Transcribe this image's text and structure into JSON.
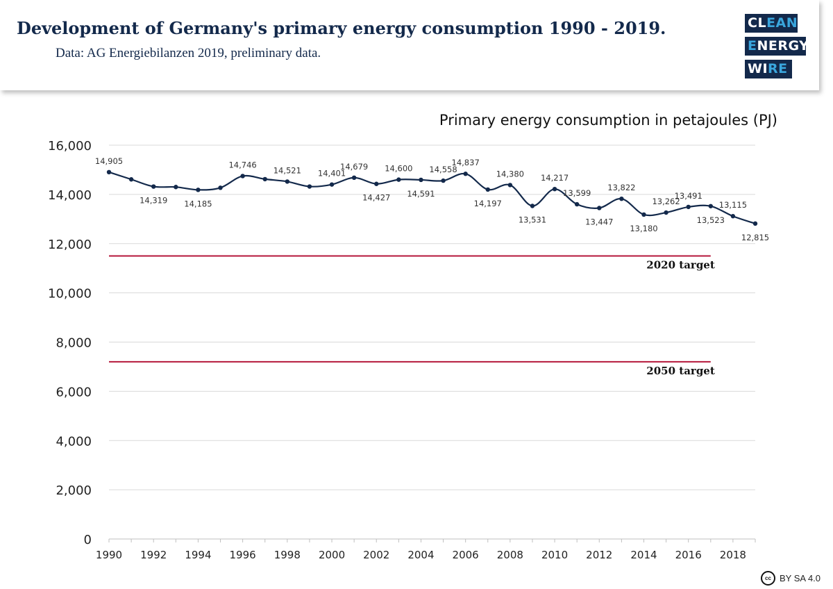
{
  "header": {
    "title": "Development of Germany's primary energy consumption 1990 - 2019.",
    "subtitle": "Data: AG Energiebilanzen 2019, preliminary data."
  },
  "logo": {
    "line1": "CL",
    "line1_accent": "EAN",
    "line2_accent": "E",
    "line2": "NERGY",
    "line3": "WI",
    "line3_accent": "RE",
    "color": "#13294b",
    "accent_color": "#3aa6dd"
  },
  "license": {
    "icon": "cc-icon",
    "icon_text": "cc",
    "text": "BY SA 4.0"
  },
  "chart_data": {
    "type": "line",
    "title": "Primary energy consumption in petajoules (PJ)",
    "xlabel": "",
    "ylabel": "",
    "xlim": [
      1990,
      2019
    ],
    "ylim": [
      0,
      16000
    ],
    "yticks": [
      0,
      2000,
      4000,
      6000,
      8000,
      10000,
      12000,
      14000,
      16000
    ],
    "ytick_labels": [
      "0",
      "2,000",
      "4,000",
      "6,000",
      "8,000",
      "10,000",
      "12,000",
      "14,000",
      "16,000"
    ],
    "xticks": [
      1990,
      1992,
      1994,
      1996,
      1998,
      2000,
      2002,
      2004,
      2006,
      2008,
      2010,
      2012,
      2014,
      2016,
      2018
    ],
    "grid": "horizontal",
    "series": [
      {
        "color": "#13294b",
        "x": [
          1990,
          1991,
          1992,
          1993,
          1994,
          1995,
          1996,
          1997,
          1998,
          1999,
          2000,
          2001,
          2002,
          2003,
          2004,
          2005,
          2006,
          2007,
          2008,
          2009,
          2010,
          2011,
          2012,
          2013,
          2014,
          2015,
          2016,
          2017,
          2018,
          2019
        ],
        "values": [
          14905,
          14610,
          14319,
          14300,
          14185,
          14270,
          14746,
          14620,
          14521,
          14320,
          14401,
          14679,
          14427,
          14600,
          14591,
          14558,
          14837,
          14197,
          14380,
          13531,
          14217,
          13599,
          13447,
          13822,
          13180,
          13262,
          13491,
          13523,
          13115,
          12815
        ],
        "labels": [
          {
            "x": 1990,
            "text": "14,905",
            "pos": "above"
          },
          {
            "x": 1992,
            "text": "14,319",
            "pos": "below"
          },
          {
            "x": 1994,
            "text": "14,185",
            "pos": "below"
          },
          {
            "x": 1996,
            "text": "14,746",
            "pos": "above"
          },
          {
            "x": 1998,
            "text": "14,521",
            "pos": "above"
          },
          {
            "x": 2000,
            "text": "14,401",
            "pos": "above"
          },
          {
            "x": 2001,
            "text": "14,679",
            "pos": "above"
          },
          {
            "x": 2002,
            "text": "14,427",
            "pos": "below"
          },
          {
            "x": 2003,
            "text": "14,600",
            "pos": "above"
          },
          {
            "x": 2004,
            "text": "14,591",
            "pos": "below"
          },
          {
            "x": 2005,
            "text": "14,558",
            "pos": "above"
          },
          {
            "x": 2006,
            "text": "14,837",
            "pos": "above"
          },
          {
            "x": 2007,
            "text": "14,197",
            "pos": "below"
          },
          {
            "x": 2008,
            "text": "14,380",
            "pos": "above"
          },
          {
            "x": 2009,
            "text": "13,531",
            "pos": "below"
          },
          {
            "x": 2010,
            "text": "14,217",
            "pos": "above"
          },
          {
            "x": 2011,
            "text": "13,599",
            "pos": "above"
          },
          {
            "x": 2012,
            "text": "13,447",
            "pos": "below"
          },
          {
            "x": 2013,
            "text": "13,822",
            "pos": "above"
          },
          {
            "x": 2014,
            "text": "13,180",
            "pos": "below"
          },
          {
            "x": 2015,
            "text": "13,262",
            "pos": "above"
          },
          {
            "x": 2016,
            "text": "13,491",
            "pos": "above"
          },
          {
            "x": 2017,
            "text": "13,523",
            "pos": "below"
          },
          {
            "x": 2018,
            "text": "13,115",
            "pos": "above"
          },
          {
            "x": 2019,
            "text": "12,815",
            "pos": "below"
          }
        ]
      }
    ],
    "reference_lines": [
      {
        "name": "2020 target",
        "value": 11500,
        "x_start": 1990,
        "x_end": 2017,
        "color": "#b5163a"
      },
      {
        "name": "2050 target",
        "value": 7200,
        "x_start": 1990,
        "x_end": 2017,
        "color": "#b5163a"
      }
    ]
  }
}
